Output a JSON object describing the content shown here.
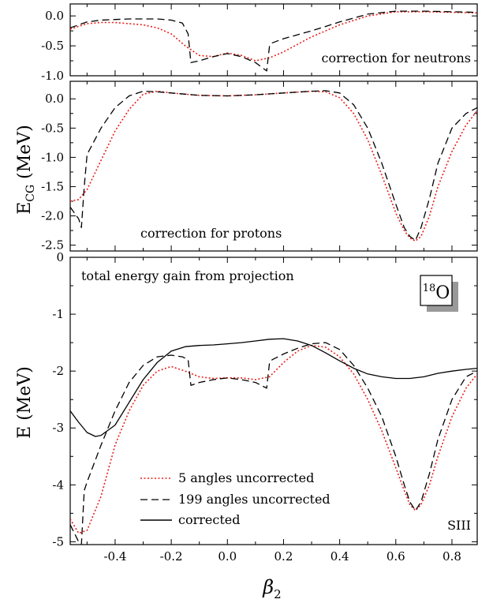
{
  "chart_data": [
    {
      "type": "line",
      "annotation": "correction for neutrons",
      "ylabel": "",
      "xlim": [
        -0.56,
        0.89
      ],
      "ylim": [
        -1.0,
        0.2
      ],
      "yticks": [
        "0.0",
        "-0.5",
        "-1.0"
      ],
      "series": [
        {
          "style": "dotted",
          "color": "#e8201c",
          "x": [
            -0.56,
            -0.5,
            -0.45,
            -0.4,
            -0.35,
            -0.3,
            -0.25,
            -0.2,
            -0.15,
            -0.1,
            -0.05,
            0.0,
            0.05,
            0.1,
            0.15,
            0.2,
            0.3,
            0.4,
            0.5,
            0.6,
            0.7,
            0.8,
            0.89
          ],
          "y": [
            -0.22,
            -0.13,
            -0.11,
            -0.11,
            -0.13,
            -0.15,
            -0.2,
            -0.3,
            -0.5,
            -0.66,
            -0.68,
            -0.62,
            -0.66,
            -0.75,
            -0.7,
            -0.6,
            -0.35,
            -0.15,
            0.0,
            0.07,
            0.07,
            0.06,
            0.05
          ]
        },
        {
          "style": "dashed",
          "color": "#000000",
          "x": [
            -0.56,
            -0.5,
            -0.45,
            -0.4,
            -0.35,
            -0.3,
            -0.25,
            -0.2,
            -0.16,
            -0.14,
            -0.13,
            -0.1,
            -0.05,
            0.0,
            0.05,
            0.1,
            0.14,
            0.15,
            0.16,
            0.2,
            0.3,
            0.4,
            0.5,
            0.6,
            0.7,
            0.8,
            0.89
          ],
          "y": [
            -0.2,
            -0.1,
            -0.07,
            -0.06,
            -0.05,
            -0.05,
            -0.05,
            -0.07,
            -0.12,
            -0.3,
            -0.78,
            -0.75,
            -0.68,
            -0.63,
            -0.68,
            -0.78,
            -0.92,
            -0.5,
            -0.45,
            -0.38,
            -0.25,
            -0.1,
            0.03,
            0.08,
            0.08,
            0.07,
            0.06
          ]
        }
      ]
    },
    {
      "type": "line",
      "annotation": "correction for protons",
      "ylabel": "E_CG (MeV)",
      "xlim": [
        -0.56,
        0.89
      ],
      "ylim": [
        -2.6,
        0.3
      ],
      "yticks": [
        "0.0",
        "-0.5",
        "-1.0",
        "-1.5",
        "-2.0",
        "-2.5"
      ],
      "series": [
        {
          "style": "dotted",
          "color": "#e8201c",
          "x": [
            -0.56,
            -0.53,
            -0.5,
            -0.45,
            -0.4,
            -0.35,
            -0.3,
            -0.25,
            -0.2,
            -0.1,
            0.0,
            0.1,
            0.2,
            0.3,
            0.35,
            0.4,
            0.45,
            0.5,
            0.55,
            0.6,
            0.63,
            0.65,
            0.67,
            0.69,
            0.72,
            0.75,
            0.8,
            0.85,
            0.89
          ],
          "y": [
            -1.75,
            -1.72,
            -1.55,
            -1.05,
            -0.55,
            -0.18,
            0.08,
            0.13,
            0.1,
            0.06,
            0.05,
            0.07,
            0.1,
            0.13,
            0.12,
            0.02,
            -0.25,
            -0.7,
            -1.3,
            -1.95,
            -2.25,
            -2.38,
            -2.43,
            -2.35,
            -2.0,
            -1.5,
            -0.9,
            -0.45,
            -0.2
          ]
        },
        {
          "style": "dashed",
          "color": "#000000",
          "x": [
            -0.56,
            -0.53,
            -0.52,
            -0.51,
            -0.5,
            -0.45,
            -0.4,
            -0.35,
            -0.3,
            -0.25,
            -0.2,
            -0.1,
            0.0,
            0.1,
            0.2,
            0.3,
            0.35,
            0.4,
            0.45,
            0.5,
            0.55,
            0.6,
            0.63,
            0.65,
            0.67,
            0.69,
            0.72,
            0.75,
            0.8,
            0.85,
            0.89
          ],
          "y": [
            -1.85,
            -2.05,
            -2.2,
            -1.5,
            -0.95,
            -0.5,
            -0.15,
            0.05,
            0.13,
            0.12,
            0.1,
            0.06,
            0.05,
            0.07,
            0.1,
            0.13,
            0.14,
            0.1,
            -0.1,
            -0.5,
            -1.1,
            -1.8,
            -2.2,
            -2.35,
            -2.42,
            -2.2,
            -1.7,
            -1.1,
            -0.5,
            -0.25,
            -0.15
          ]
        }
      ]
    },
    {
      "type": "line",
      "annotation": "total energy gain from projection",
      "label_box": "18O",
      "label_box_sup": "18",
      "label_box_main": "O",
      "corner_label": "SIII",
      "ylabel": "E (MeV)",
      "xlabel": "β2",
      "xlim": [
        -0.56,
        0.89
      ],
      "ylim": [
        -5.05,
        0.0
      ],
      "yticks": [
        "0",
        "-1",
        "-2",
        "-3",
        "-4",
        "-5"
      ],
      "xticks": [
        "-0.4",
        "-0.2",
        "0.0",
        "0.2",
        "0.4",
        "0.6",
        "0.8"
      ],
      "series": [
        {
          "name": "5 angles uncorrected",
          "style": "dotted",
          "color": "#e8201c",
          "x": [
            -0.56,
            -0.53,
            -0.5,
            -0.45,
            -0.4,
            -0.35,
            -0.3,
            -0.25,
            -0.2,
            -0.15,
            -0.1,
            -0.05,
            0.0,
            0.05,
            0.1,
            0.15,
            0.2,
            0.25,
            0.3,
            0.35,
            0.4,
            0.45,
            0.5,
            0.55,
            0.6,
            0.63,
            0.65,
            0.67,
            0.69,
            0.72,
            0.75,
            0.8,
            0.85,
            0.89
          ],
          "y": [
            -4.6,
            -4.85,
            -4.8,
            -4.2,
            -3.3,
            -2.7,
            -2.25,
            -2.0,
            -1.92,
            -2.0,
            -2.1,
            -2.13,
            -2.12,
            -2.12,
            -2.15,
            -2.1,
            -1.85,
            -1.65,
            -1.55,
            -1.58,
            -1.75,
            -2.05,
            -2.5,
            -3.05,
            -3.7,
            -4.1,
            -4.35,
            -4.45,
            -4.35,
            -4.0,
            -3.5,
            -2.8,
            -2.3,
            -2.05
          ]
        },
        {
          "name": "199 angles uncorrected",
          "style": "dashed",
          "color": "#000000",
          "x": [
            -0.56,
            -0.53,
            -0.52,
            -0.51,
            -0.5,
            -0.45,
            -0.4,
            -0.35,
            -0.3,
            -0.25,
            -0.2,
            -0.16,
            -0.14,
            -0.13,
            -0.1,
            -0.05,
            0.0,
            0.05,
            0.1,
            0.14,
            0.15,
            0.16,
            0.2,
            0.25,
            0.3,
            0.35,
            0.4,
            0.45,
            0.5,
            0.55,
            0.6,
            0.63,
            0.65,
            0.67,
            0.69,
            0.72,
            0.75,
            0.8,
            0.85,
            0.89
          ],
          "y": [
            -4.7,
            -5.0,
            -5.05,
            -4.1,
            -3.95,
            -3.3,
            -2.7,
            -2.2,
            -1.9,
            -1.75,
            -1.72,
            -1.75,
            -1.8,
            -2.25,
            -2.2,
            -2.15,
            -2.12,
            -2.15,
            -2.2,
            -2.3,
            -1.85,
            -1.8,
            -1.7,
            -1.6,
            -1.52,
            -1.5,
            -1.62,
            -1.9,
            -2.3,
            -2.8,
            -3.5,
            -4.0,
            -4.3,
            -4.45,
            -4.3,
            -3.8,
            -3.2,
            -2.5,
            -2.1,
            -2.0
          ]
        },
        {
          "name": "corrected",
          "style": "solid",
          "color": "#000000",
          "x": [
            -0.56,
            -0.53,
            -0.5,
            -0.47,
            -0.45,
            -0.4,
            -0.35,
            -0.3,
            -0.25,
            -0.2,
            -0.15,
            -0.1,
            -0.05,
            0.0,
            0.05,
            0.1,
            0.15,
            0.2,
            0.25,
            0.3,
            0.35,
            0.4,
            0.45,
            0.5,
            0.55,
            0.6,
            0.65,
            0.7,
            0.75,
            0.8,
            0.85,
            0.89
          ],
          "y": [
            -2.7,
            -2.9,
            -3.08,
            -3.15,
            -3.13,
            -2.95,
            -2.55,
            -2.15,
            -1.85,
            -1.65,
            -1.57,
            -1.55,
            -1.54,
            -1.52,
            -1.5,
            -1.47,
            -1.44,
            -1.43,
            -1.47,
            -1.55,
            -1.68,
            -1.82,
            -1.95,
            -2.05,
            -2.1,
            -2.13,
            -2.13,
            -2.1,
            -2.04,
            -2.0,
            -1.97,
            -1.95
          ]
        }
      ]
    }
  ]
}
